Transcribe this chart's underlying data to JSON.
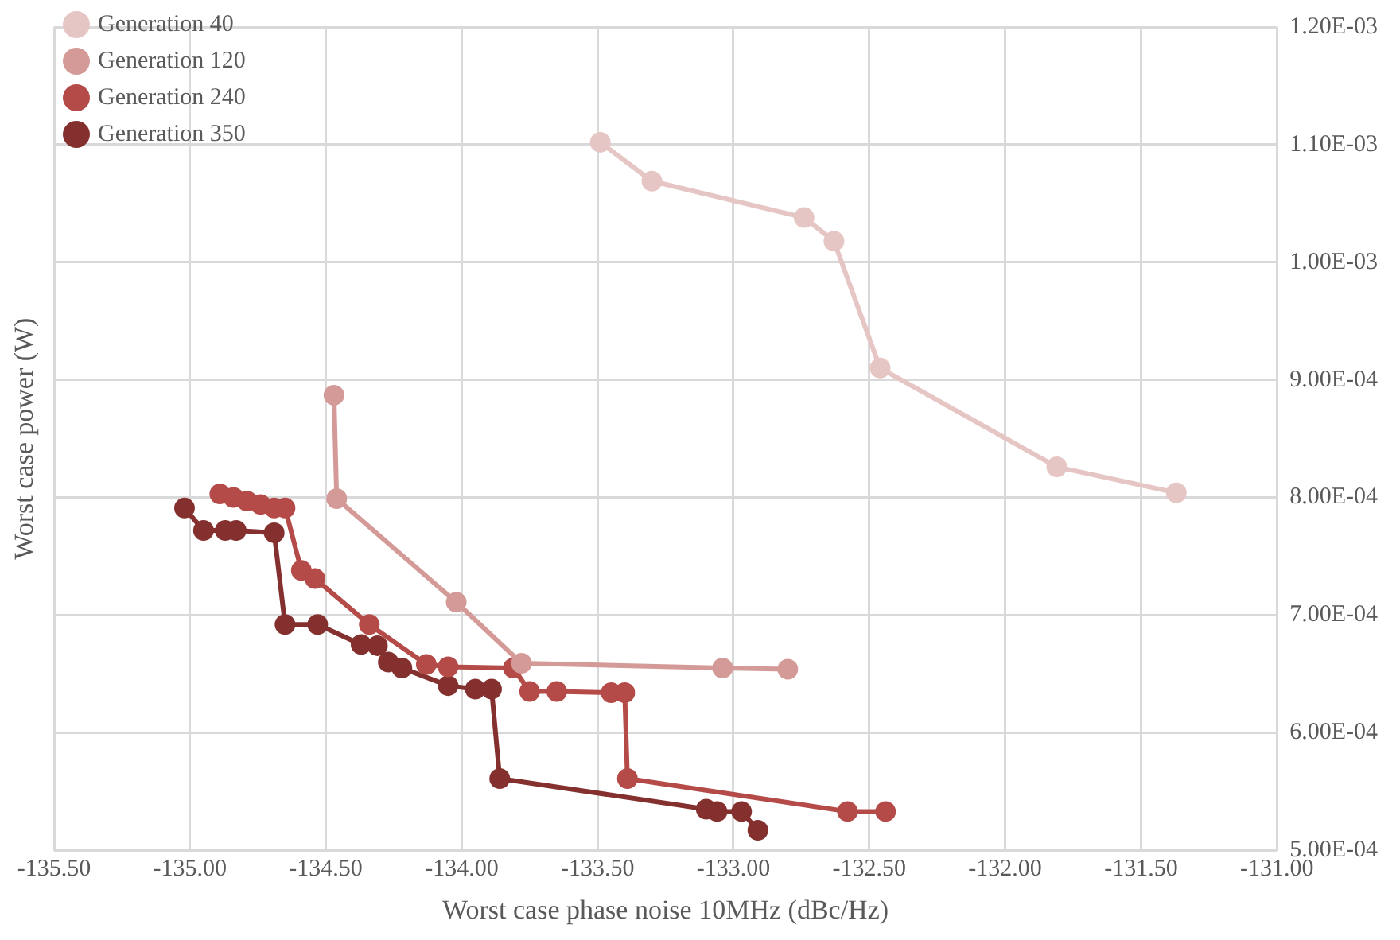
{
  "chart_data": {
    "type": "line",
    "xlabel": "Worst case phase noise 10MHz (dBc/Hz)",
    "ylabel": "Worst case power (W)",
    "xlim": [
      -135.5,
      -131
    ],
    "xticks": [
      {
        "value": -135.5,
        "label": "-135.50"
      },
      {
        "value": -135,
        "label": "-135.00"
      },
      {
        "value": -134.5,
        "label": "-134.50"
      },
      {
        "value": -134,
        "label": "-134.00"
      },
      {
        "value": -133.5,
        "label": "-133.50"
      },
      {
        "value": -133,
        "label": "-133.00"
      },
      {
        "value": -132.5,
        "label": "-132.50"
      },
      {
        "value": -132,
        "label": "-132.00"
      },
      {
        "value": -131.5,
        "label": "-131.50"
      },
      {
        "value": -131,
        "label": "-131.00"
      }
    ],
    "ylim": [
      0.0005,
      0.0012
    ],
    "yticks": [
      {
        "value": 0.0005,
        "label": "5.00E-04"
      },
      {
        "value": 0.0006,
        "label": "6.00E-04"
      },
      {
        "value": 0.0007,
        "label": "7.00E-04"
      },
      {
        "value": 0.0008,
        "label": "8.00E-04"
      },
      {
        "value": 0.0009,
        "label": "9.00E-04"
      },
      {
        "value": 0.001,
        "label": "1.00E-03"
      },
      {
        "value": 0.0011,
        "label": "1.10E-03"
      },
      {
        "value": 0.0012,
        "label": "1.20E-03"
      }
    ],
    "grid": true,
    "legend": "top left",
    "marker": "circle",
    "line_style": "solid",
    "series": [
      {
        "name": "Generation 40",
        "color": "#e6c6c5",
        "x": [
          -133.49,
          -133.3,
          -132.74,
          -132.63,
          -132.46,
          -131.81,
          -131.37
        ],
        "values": [
          0.001102,
          0.001069,
          0.001038,
          0.001018,
          0.00091,
          0.000826,
          0.000804
        ]
      },
      {
        "name": "Generation 120",
        "color": "#d49a98",
        "x": [
          -134.47,
          -134.46,
          -134.02,
          -133.78,
          -133.04,
          -132.8
        ],
        "values": [
          0.000887,
          0.000799,
          0.000711,
          0.000659,
          0.000655,
          0.000654
        ]
      },
      {
        "name": "Generation 240",
        "color": "#b44b48",
        "x": [
          -134.89,
          -134.84,
          -134.79,
          -134.74,
          -134.69,
          -134.65,
          -134.59,
          -134.54,
          -134.34,
          -134.13,
          -134.05,
          -133.81,
          -133.75,
          -133.65,
          -133.45,
          -133.4,
          -133.39,
          -132.58,
          -132.44
        ],
        "values": [
          0.000803,
          0.0008,
          0.000797,
          0.000794,
          0.000791,
          0.000791,
          0.000738,
          0.000731,
          0.000692,
          0.000658,
          0.000656,
          0.000655,
          0.000635,
          0.000635,
          0.000634,
          0.000634,
          0.000561,
          0.000533,
          0.000533
        ]
      },
      {
        "name": "Generation 350",
        "color": "#84302f",
        "x": [
          -135.02,
          -134.95,
          -134.87,
          -134.83,
          -134.69,
          -134.65,
          -134.53,
          -134.37,
          -134.31,
          -134.27,
          -134.22,
          -134.05,
          -133.95,
          -133.89,
          -133.86,
          -133.1,
          -133.06,
          -132.97,
          -132.91
        ],
        "values": [
          0.000791,
          0.000772,
          0.000772,
          0.000772,
          0.00077,
          0.000692,
          0.000692,
          0.000675,
          0.000674,
          0.00066,
          0.000655,
          0.00064,
          0.000637,
          0.000637,
          0.000561,
          0.000535,
          0.000533,
          0.000533,
          0.000517
        ]
      }
    ]
  }
}
